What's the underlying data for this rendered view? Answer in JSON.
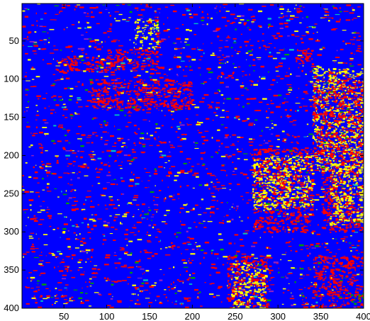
{
  "chart_data": {
    "type": "heatmap",
    "title": "",
    "xlabel": "",
    "ylabel": "",
    "xlim": [
      1,
      400
    ],
    "ylim": [
      400,
      1
    ],
    "y_axis_direction": "top-to-bottom",
    "x_ticks": [
      50,
      100,
      150,
      200,
      250,
      300,
      350,
      400
    ],
    "y_ticks": [
      50,
      100,
      150,
      200,
      250,
      300,
      350,
      400
    ],
    "grid": false,
    "legend": "none",
    "colormap": [
      "#0000ff",
      "#ff0000",
      "#ffff00",
      "#00a000",
      "#9020c0",
      "#00c0c0"
    ],
    "background_class_color": "#0000ff",
    "image_size": [
      400,
      400
    ],
    "regions": [
      {
        "color": "#ff0000",
        "x": [
          40,
          120
        ],
        "y": [
          70,
          90
        ]
      },
      {
        "color": "#ff0000",
        "x": [
          100,
          160
        ],
        "y": [
          60,
          85
        ]
      },
      {
        "color": "#ff0000",
        "x": [
          320,
          340
        ],
        "y": [
          60,
          80
        ]
      },
      {
        "color": "#ffff00",
        "x": [
          130,
          160
        ],
        "y": [
          20,
          60
        ]
      },
      {
        "color": "#ff0000",
        "x": [
          80,
          200
        ],
        "y": [
          100,
          140
        ]
      },
      {
        "color": "#ffff00",
        "x": [
          340,
          400
        ],
        "y": [
          85,
          220
        ]
      },
      {
        "color": "#ff0000",
        "x": [
          340,
          400
        ],
        "y": [
          100,
          200
        ]
      },
      {
        "color": "#ff0000",
        "x": [
          270,
          340
        ],
        "y": [
          190,
          300
        ]
      },
      {
        "color": "#ffff00",
        "x": [
          270,
          340
        ],
        "y": [
          200,
          270
        ]
      },
      {
        "color": "#ff0000",
        "x": [
          350,
          400
        ],
        "y": [
          200,
          300
        ]
      },
      {
        "color": "#ffff00",
        "x": [
          360,
          400
        ],
        "y": [
          210,
          290
        ]
      },
      {
        "color": "#ff0000",
        "x": [
          240,
          290
        ],
        "y": [
          330,
          400
        ]
      },
      {
        "color": "#ffff00",
        "x": [
          245,
          285
        ],
        "y": [
          340,
          400
        ]
      },
      {
        "color": "#ff0000",
        "x": [
          340,
          400
        ],
        "y": [
          330,
          400
        ]
      },
      {
        "color": "#00a000",
        "x": [
          385,
          400
        ],
        "y": [
          380,
          400
        ]
      }
    ]
  }
}
